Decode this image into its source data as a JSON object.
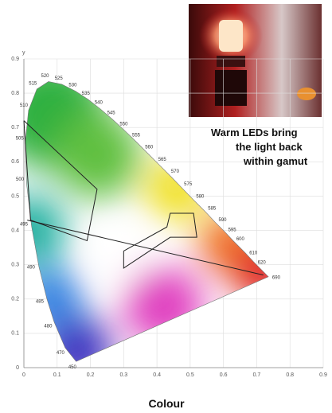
{
  "chart_data": {
    "type": "chromaticity",
    "title": "Colour",
    "ylabel": "y",
    "annotations": [
      "Warm LEDs bring",
      "the  light back",
      "within gamut"
    ],
    "xlim": [
      0,
      0.9
    ],
    "ylim": [
      0,
      0.9
    ],
    "xticks": [
      0,
      0.1,
      0.2,
      0.3,
      0.4,
      0.5,
      0.6,
      0.7,
      0.8,
      0.9
    ],
    "yticks": [
      0,
      0.1,
      0.2,
      0.3,
      0.4,
      0.5,
      0.6,
      0.7,
      0.8,
      0.9
    ],
    "grid": true,
    "locus": {
      "labels": [
        450,
        470,
        480,
        485,
        490,
        495,
        500,
        505,
        510,
        515,
        520,
        525,
        530,
        535,
        540,
        545,
        550,
        555,
        560,
        565,
        570,
        575,
        580,
        585,
        590,
        595,
        600,
        610,
        620,
        690
      ],
      "x": [
        0.157,
        0.124,
        0.091,
        0.069,
        0.045,
        0.023,
        0.008,
        0.004,
        0.014,
        0.039,
        0.074,
        0.114,
        0.155,
        0.193,
        0.23,
        0.266,
        0.302,
        0.337,
        0.373,
        0.409,
        0.444,
        0.479,
        0.512,
        0.545,
        0.575,
        0.603,
        0.627,
        0.666,
        0.691,
        0.735
      ],
      "y": [
        0.018,
        0.058,
        0.133,
        0.201,
        0.295,
        0.413,
        0.538,
        0.655,
        0.75,
        0.812,
        0.834,
        0.826,
        0.806,
        0.782,
        0.754,
        0.724,
        0.692,
        0.659,
        0.624,
        0.589,
        0.555,
        0.52,
        0.487,
        0.455,
        0.424,
        0.397,
        0.372,
        0.334,
        0.308,
        0.265
      ]
    },
    "regions": [
      {
        "x": [
          0.0,
          0.22,
          0.19,
          0.02,
          0.0
        ],
        "y": [
          0.72,
          0.52,
          0.37,
          0.43,
          0.72
        ]
      },
      {
        "x": [
          0.01,
          0.72
        ],
        "y": [
          0.43,
          0.27
        ]
      },
      {
        "x": [
          0.3,
          0.43,
          0.44,
          0.51,
          0.52,
          0.44,
          0.3,
          0.3
        ],
        "y": [
          0.34,
          0.41,
          0.45,
          0.45,
          0.38,
          0.38,
          0.29,
          0.34
        ]
      }
    ]
  }
}
